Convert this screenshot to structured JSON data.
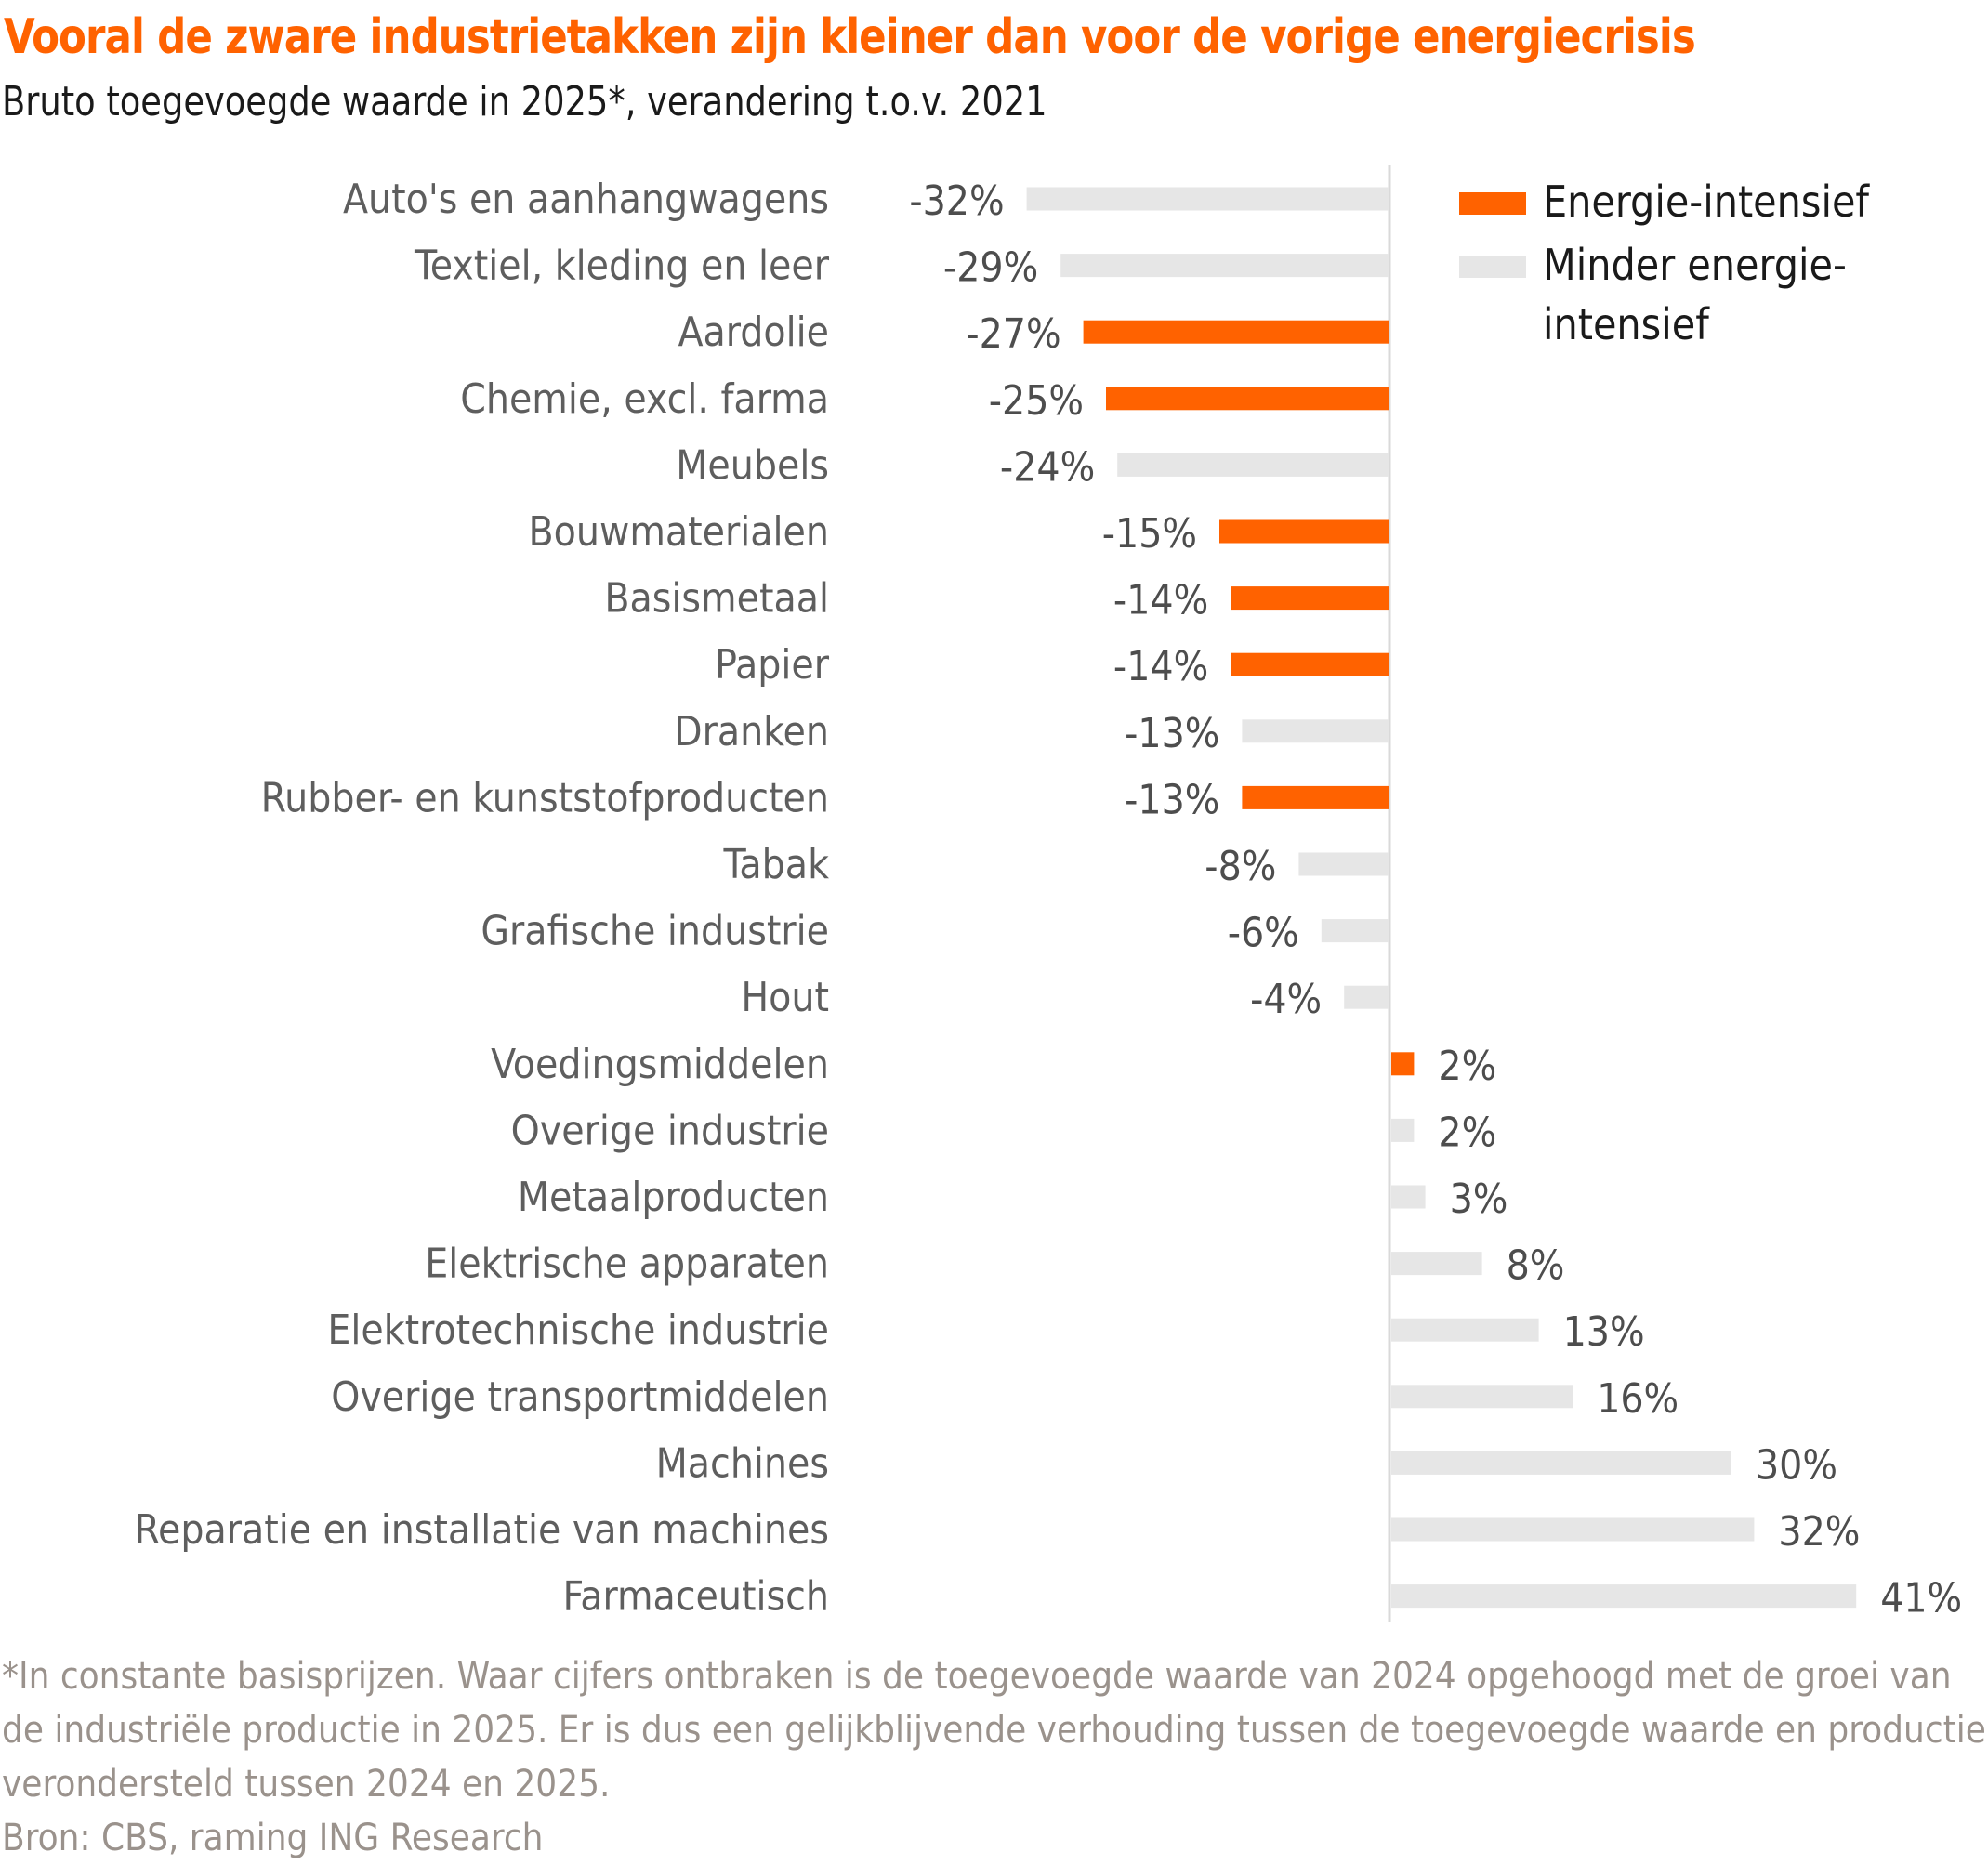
{
  "header": {
    "title": "Vooral de zware industrietakken zijn kleiner dan voor de vorige energiecrisis",
    "subtitle": "Bruto toegevoegde waarde in 2025*, verandering t.o.v. 2021"
  },
  "legend": {
    "items": [
      {
        "label": "Energie-intensief",
        "color": "#ff6200"
      },
      {
        "label": "Minder energie-intensief",
        "color": "#e6e6e6"
      }
    ]
  },
  "footnote": {
    "note": "*In constante basisprijzen. Waar cijfers ontbraken is de toegevoegde waarde van 2024 opgehoogd met de groei van de industriële productie in 2025. Er is dus een gelijkblijvende verhouding tussen de toegevoegde waarde en productie verondersteld tussen 2024 en 2025.",
    "source": "Bron: CBS, raming ING Research"
  },
  "colors": {
    "energy_intensive": "#ff6200",
    "less_energy_intensive": "#e6e6e6",
    "axis": "#d9d9d9"
  },
  "chart_data": {
    "type": "bar",
    "orientation": "horizontal",
    "title": "Vooral de zware industrietakken zijn kleiner dan voor de vorige energiecrisis",
    "subtitle": "Bruto toegevoegde waarde in 2025*, verandering t.o.v. 2021",
    "xlabel": "",
    "ylabel": "",
    "unit": "%",
    "xlim": [
      -32,
      41
    ],
    "grid": false,
    "legend_position": "top-right",
    "categories": [
      "Auto's en aanhangwagens",
      "Textiel, kleding en leer",
      "Aardolie",
      "Chemie, excl. farma",
      "Meubels",
      "Bouwmaterialen",
      "Basismetaal",
      "Papier",
      "Dranken",
      "Rubber- en kunststofproducten",
      "Tabak",
      "Grafische industrie",
      "Hout",
      "Voedingsmiddelen",
      "Overige industrie",
      "Metaalproducten",
      "Elektrische apparaten",
      "Elektrotechnische industrie",
      "Overige transportmiddelen",
      "Machines",
      "Reparatie en installatie van machines",
      "Farmaceutisch"
    ],
    "values": [
      -32,
      -29,
      -27,
      -25,
      -24,
      -15,
      -14,
      -14,
      -13,
      -13,
      -8,
      -6,
      -4,
      2,
      2,
      3,
      8,
      13,
      16,
      30,
      32,
      41
    ],
    "labels": [
      "-32%",
      "-29%",
      "-27%",
      "-25%",
      "-24%",
      "-15%",
      "-14%",
      "-14%",
      "-13%",
      "-13%",
      "-8%",
      "-6%",
      "-4%",
      "2%",
      "2%",
      "3%",
      "8%",
      "13%",
      "16%",
      "30%",
      "32%",
      "41%"
    ],
    "group": [
      "Minder energie-intensief",
      "Minder energie-intensief",
      "Energie-intensief",
      "Energie-intensief",
      "Minder energie-intensief",
      "Energie-intensief",
      "Energie-intensief",
      "Energie-intensief",
      "Minder energie-intensief",
      "Energie-intensief",
      "Minder energie-intensief",
      "Minder energie-intensief",
      "Minder energie-intensief",
      "Energie-intensief",
      "Minder energie-intensief",
      "Minder energie-intensief",
      "Minder energie-intensief",
      "Minder energie-intensief",
      "Minder energie-intensief",
      "Minder energie-intensief",
      "Minder energie-intensief",
      "Minder energie-intensief"
    ]
  }
}
